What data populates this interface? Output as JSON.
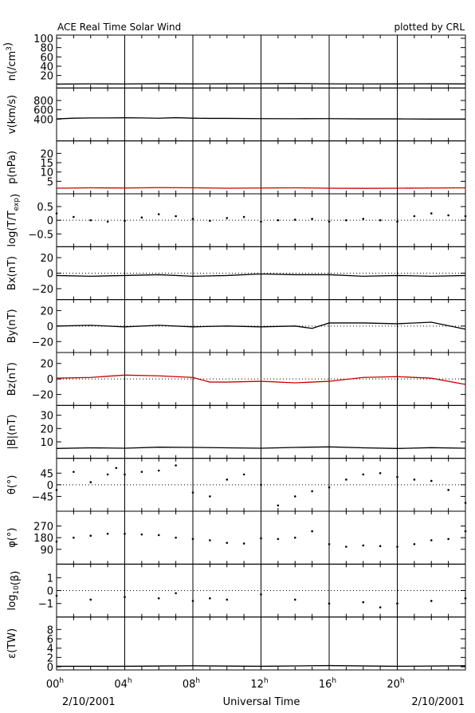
{
  "header": {
    "title": "ACE Real Time Solar Wind",
    "credit": "plotted by CRL"
  },
  "footer": {
    "date_left": "2/10/2001",
    "xlabel": "Universal Time",
    "date_right": "2/10/2001"
  },
  "chart_data": {
    "type": "line",
    "x_axis": {
      "unit": "hours UT",
      "range": [
        0,
        24
      ],
      "ticks": [
        {
          "value": 0,
          "label": "00",
          "sup": "h"
        },
        {
          "value": 4,
          "label": "04",
          "sup": "h"
        },
        {
          "value": 8,
          "label": "08",
          "sup": "h"
        },
        {
          "value": 12,
          "label": "12",
          "sup": "h"
        },
        {
          "value": 16,
          "label": "16",
          "sup": "h"
        },
        {
          "value": 20,
          "label": "20",
          "sup": "h"
        }
      ]
    },
    "panels": [
      {
        "key": "n",
        "ylabel": "n(/cm",
        "ylabel_sup": "3",
        "ylabel_tail": ")",
        "ylim": [
          0,
          100
        ],
        "ticks": [
          20,
          40,
          60,
          80,
          100
        ],
        "tick_labels": [
          "20",
          "40",
          "60",
          "80",
          "100"
        ],
        "zero_line": false,
        "color": "#000000",
        "style": "line",
        "series": [
          [
            0,
            1.5
          ],
          [
            2,
            2.1
          ],
          [
            4,
            1.8
          ],
          [
            6,
            2.4
          ],
          [
            8,
            2.0
          ],
          [
            10,
            2.2
          ],
          [
            12,
            2.3
          ],
          [
            14,
            2.6
          ],
          [
            16,
            2.1
          ],
          [
            18,
            1.9
          ],
          [
            20,
            2.0
          ],
          [
            22,
            2.2
          ],
          [
            24,
            2.0
          ]
        ]
      },
      {
        "key": "v",
        "ylabel": "v(km/s)",
        "ylim": [
          0,
          1000
        ],
        "ticks": [
          400,
          600,
          800
        ],
        "tick_labels": [
          "400",
          "600",
          "800"
        ],
        "zero_line": false,
        "color": "#000000",
        "style": "line",
        "series": [
          [
            0,
            405
          ],
          [
            1,
            420
          ],
          [
            2,
            425
          ],
          [
            3,
            425
          ],
          [
            4,
            428
          ],
          [
            5,
            425
          ],
          [
            6,
            418
          ],
          [
            7,
            430
          ],
          [
            8,
            420
          ],
          [
            9,
            415
          ],
          [
            10,
            415
          ],
          [
            12,
            410
          ],
          [
            14,
            408
          ],
          [
            16,
            410
          ],
          [
            18,
            405
          ],
          [
            20,
            405
          ],
          [
            22,
            400
          ],
          [
            24,
            400
          ]
        ]
      },
      {
        "key": "p",
        "ylabel": "p(nPa)",
        "ylim": [
          0,
          25
        ],
        "ticks": [
          5,
          10,
          15,
          20
        ],
        "tick_labels": [
          "5",
          "10",
          "15",
          "20"
        ],
        "zero_line": false,
        "color": "#cc0000",
        "style": "line",
        "series": [
          [
            0,
            1.3
          ],
          [
            2,
            1.5
          ],
          [
            4,
            1.4
          ],
          [
            6,
            1.6
          ],
          [
            8,
            1.5
          ],
          [
            10,
            1.3
          ],
          [
            12,
            1.4
          ],
          [
            14,
            1.5
          ],
          [
            16,
            1.3
          ],
          [
            18,
            1.2
          ],
          [
            20,
            1.3
          ],
          [
            22,
            1.4
          ],
          [
            24,
            1.5
          ]
        ]
      },
      {
        "key": "logT",
        "ylabel": "log(T/T",
        "ylabel_sub": "exp",
        "ylabel_tail": ")",
        "ylim": [
          -0.85,
          0.85
        ],
        "ticks": [
          -0.5,
          0,
          0.5
        ],
        "tick_labels": [
          "−0.5",
          "0",
          "0.5"
        ],
        "zero_line": true,
        "color": "#000000",
        "style": "scatter",
        "series": [
          [
            0,
            0.25
          ],
          [
            1,
            0.12
          ],
          [
            2,
            0.0
          ],
          [
            3,
            -0.05
          ],
          [
            4,
            -0.02
          ],
          [
            5,
            0.1
          ],
          [
            6,
            0.22
          ],
          [
            7,
            0.15
          ],
          [
            8,
            0.05
          ],
          [
            9,
            -0.02
          ],
          [
            10,
            0.08
          ],
          [
            11,
            0.12
          ],
          [
            12,
            -0.05
          ],
          [
            13,
            0.0
          ],
          [
            14,
            0.02
          ],
          [
            15,
            0.05
          ],
          [
            16,
            -0.05
          ],
          [
            17,
            0.0
          ],
          [
            18,
            0.05
          ],
          [
            19,
            0.0
          ],
          [
            20,
            -0.05
          ],
          [
            21,
            0.15
          ],
          [
            22,
            0.25
          ],
          [
            23,
            0.18
          ],
          [
            24,
            0.15
          ]
        ]
      },
      {
        "key": "Bx",
        "ylabel": "Bx(nT)",
        "ylim": [
          -30,
          30
        ],
        "ticks": [
          -20,
          0,
          20
        ],
        "tick_labels": [
          "−20",
          "0",
          "20"
        ],
        "zero_line": true,
        "color": "#000000",
        "style": "line",
        "series": [
          [
            0,
            -3
          ],
          [
            2,
            -4
          ],
          [
            4,
            -3
          ],
          [
            6,
            -2
          ],
          [
            8,
            -4
          ],
          [
            10,
            -3
          ],
          [
            12,
            -1
          ],
          [
            14,
            -2
          ],
          [
            16,
            -2
          ],
          [
            18,
            -4
          ],
          [
            20,
            -3
          ],
          [
            22,
            -4
          ],
          [
            24,
            -3
          ]
        ]
      },
      {
        "key": "By",
        "ylabel": "By(nT)",
        "ylim": [
          -30,
          30
        ],
        "ticks": [
          -20,
          0,
          20
        ],
        "tick_labels": [
          "−20",
          "0",
          "20"
        ],
        "zero_line": true,
        "color": "#000000",
        "style": "line",
        "series": [
          [
            0,
            0
          ],
          [
            2,
            1
          ],
          [
            4,
            -1
          ],
          [
            6,
            1
          ],
          [
            8,
            -1
          ],
          [
            10,
            0
          ],
          [
            12,
            -1
          ],
          [
            14,
            0
          ],
          [
            15,
            -3
          ],
          [
            16,
            4
          ],
          [
            18,
            4
          ],
          [
            20,
            3
          ],
          [
            22,
            5
          ],
          [
            24,
            -4
          ]
        ]
      },
      {
        "key": "Bz",
        "ylabel": "Bz(nT)",
        "ylim": [
          -30,
          30
        ],
        "ticks": [
          -20,
          0,
          20
        ],
        "tick_labels": [
          "−20",
          "0",
          "20"
        ],
        "zero_line": true,
        "color": "#cc0000",
        "style": "line",
        "series": [
          [
            0,
            1
          ],
          [
            2,
            2
          ],
          [
            4,
            5
          ],
          [
            6,
            4
          ],
          [
            8,
            2
          ],
          [
            9,
            -4
          ],
          [
            10,
            -4
          ],
          [
            12,
            -3
          ],
          [
            14,
            -5
          ],
          [
            16,
            -3
          ],
          [
            18,
            2
          ],
          [
            20,
            3
          ],
          [
            22,
            1
          ],
          [
            24,
            -7
          ]
        ]
      },
      {
        "key": "B",
        "ylabel": "|B|(nT)",
        "ylim": [
          0,
          35
        ],
        "ticks": [
          10,
          20,
          30
        ],
        "tick_labels": [
          "10",
          "20",
          "30"
        ],
        "zero_line": false,
        "color": "#000000",
        "style": "line",
        "series": [
          [
            0,
            5
          ],
          [
            2,
            5.5
          ],
          [
            4,
            5.2
          ],
          [
            6,
            6
          ],
          [
            8,
            5.8
          ],
          [
            10,
            5.5
          ],
          [
            12,
            5.2
          ],
          [
            14,
            5.8
          ],
          [
            16,
            6.2
          ],
          [
            18,
            5.5
          ],
          [
            20,
            5
          ],
          [
            22,
            5.6
          ],
          [
            24,
            5.2
          ]
        ]
      },
      {
        "key": "theta",
        "ylabel": "θ(°)",
        "ylim": [
          -90,
          90
        ],
        "ticks": [
          -45,
          0,
          45
        ],
        "tick_labels": [
          "−45",
          "0",
          "45"
        ],
        "zero_line": true,
        "color": "#000000",
        "style": "scatter",
        "series": [
          [
            0,
            -20
          ],
          [
            1,
            50
          ],
          [
            2,
            10
          ],
          [
            3,
            40
          ],
          [
            3.5,
            65
          ],
          [
            4,
            40
          ],
          [
            5,
            50
          ],
          [
            6,
            55
          ],
          [
            7,
            75
          ],
          [
            8,
            -30
          ],
          [
            9,
            -45
          ],
          [
            10,
            20
          ],
          [
            11,
            40
          ],
          [
            12,
            0
          ],
          [
            13,
            -80
          ],
          [
            14,
            -45
          ],
          [
            15,
            -25
          ],
          [
            16,
            -10
          ],
          [
            17,
            20
          ],
          [
            18,
            40
          ],
          [
            19,
            45
          ],
          [
            20,
            30
          ],
          [
            21,
            20
          ],
          [
            22,
            15
          ],
          [
            23,
            -20
          ],
          [
            24,
            -70
          ]
        ]
      },
      {
        "key": "phi",
        "ylabel": "φ(°)",
        "ylim": [
          0,
          360
        ],
        "ticks": [
          90,
          180,
          270
        ],
        "tick_labels": [
          "90",
          "180",
          "270"
        ],
        "zero_line": false,
        "color": "#000000",
        "style": "scatter",
        "series": [
          [
            0,
            150
          ],
          [
            1,
            180
          ],
          [
            2,
            195
          ],
          [
            3,
            210
          ],
          [
            4,
            210
          ],
          [
            5,
            205
          ],
          [
            6,
            200
          ],
          [
            7,
            180
          ],
          [
            8,
            170
          ],
          [
            9,
            160
          ],
          [
            10,
            140
          ],
          [
            11,
            135
          ],
          [
            12,
            175
          ],
          [
            13,
            170
          ],
          [
            14,
            180
          ],
          [
            15,
            230
          ],
          [
            16,
            130
          ],
          [
            17,
            110
          ],
          [
            18,
            120
          ],
          [
            19,
            115
          ],
          [
            20,
            110
          ],
          [
            21,
            130
          ],
          [
            22,
            160
          ],
          [
            23,
            170
          ],
          [
            24,
            230
          ]
        ]
      },
      {
        "key": "beta",
        "ylabel": "log",
        "ylabel_sub": "10",
        "ylabel_tail": "(β)",
        "ylim": [
          -1.8,
          1.8
        ],
        "ticks": [
          -1,
          0,
          1
        ],
        "tick_labels": [
          "−1",
          "0",
          "1"
        ],
        "zero_line": true,
        "color": "#000000",
        "style": "scatter",
        "series": [
          [
            0,
            -0.4
          ],
          [
            2,
            -0.7
          ],
          [
            4,
            -0.5
          ],
          [
            6,
            -0.6
          ],
          [
            7,
            -0.2
          ],
          [
            8,
            -0.8
          ],
          [
            9,
            -0.6
          ],
          [
            10,
            -0.7
          ],
          [
            12,
            -0.3
          ],
          [
            14,
            -0.7
          ],
          [
            16,
            -1.0
          ],
          [
            18,
            -0.9
          ],
          [
            19,
            -1.3
          ],
          [
            20,
            -1.0
          ],
          [
            22,
            -0.8
          ],
          [
            24,
            -0.6
          ]
        ]
      },
      {
        "key": "eps",
        "ylabel": "ε(TW)",
        "ylim": [
          0,
          10
        ],
        "ticks": [
          0,
          2,
          4,
          6,
          8
        ],
        "tick_labels": [
          "0",
          "2",
          "4",
          "6",
          "8"
        ],
        "zero_line": false,
        "color": "#000000",
        "style": "line",
        "series": [
          [
            0,
            0.1
          ],
          [
            4,
            0.1
          ],
          [
            8,
            0.2
          ],
          [
            12,
            0.1
          ],
          [
            16,
            0.25
          ],
          [
            20,
            0.1
          ],
          [
            24,
            0.2
          ]
        ]
      }
    ]
  }
}
